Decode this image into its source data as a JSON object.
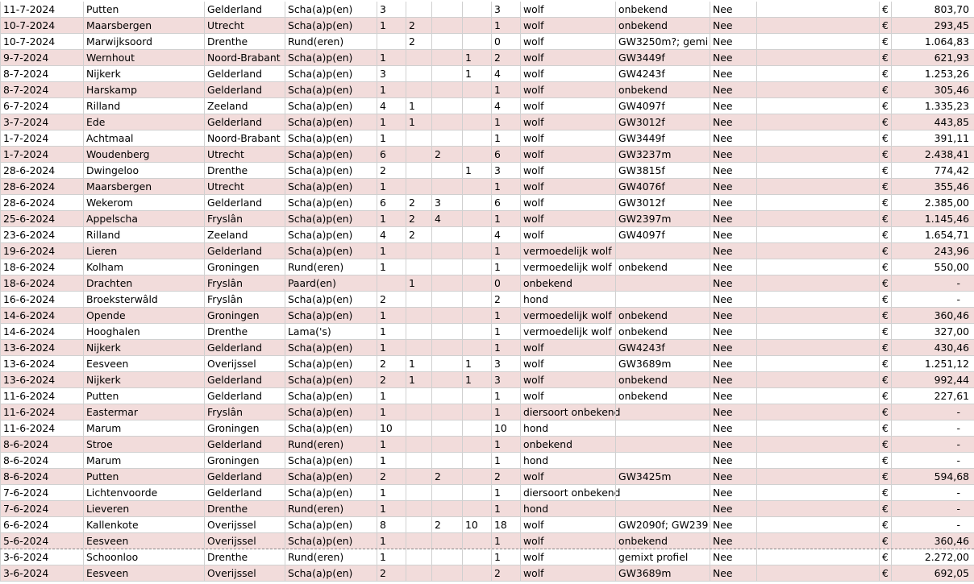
{
  "table": {
    "rows": [
      [
        "11-7-2024",
        "Putten",
        "Gelderland",
        "Scha(a)p(en)",
        "3",
        null,
        null,
        null,
        "3",
        "wolf",
        "onbekend",
        "Nee",
        null,
        "€",
        "803,70"
      ],
      [
        "10-7-2024",
        "Maarsbergen",
        "Utrecht",
        "Scha(a)p(en)",
        "1",
        "2",
        null,
        null,
        "1",
        "wolf",
        "onbekend",
        "Nee",
        null,
        "€",
        "293,45"
      ],
      [
        "10-7-2024",
        "Marwijksoord",
        "Drenthe",
        "Rund(eren)",
        null,
        "2",
        null,
        null,
        "0",
        "wolf",
        "GW3250m?; gemi",
        "Nee",
        null,
        "€",
        "1.064,83"
      ],
      [
        "9-7-2024",
        "Wernhout",
        "Noord-Brabant",
        "Scha(a)p(en)",
        "1",
        null,
        null,
        "1",
        "2",
        "wolf",
        "GW3449f",
        "Nee",
        null,
        "€",
        "621,93"
      ],
      [
        "8-7-2024",
        "Nijkerk",
        "Gelderland",
        "Scha(a)p(en)",
        "3",
        null,
        null,
        "1",
        "4",
        "wolf",
        "GW4243f",
        "Nee",
        null,
        "€",
        "1.253,26"
      ],
      [
        "8-7-2024",
        "Harskamp",
        "Gelderland",
        "Scha(a)p(en)",
        "1",
        null,
        null,
        null,
        "1",
        "wolf",
        "onbekend",
        "Nee",
        null,
        "€",
        "305,46"
      ],
      [
        "6-7-2024",
        "Rilland",
        "Zeeland",
        "Scha(a)p(en)",
        "4",
        "1",
        null,
        null,
        "4",
        "wolf",
        "GW4097f",
        "Nee",
        null,
        "€",
        "1.335,23"
      ],
      [
        "3-7-2024",
        "Ede",
        "Gelderland",
        "Scha(a)p(en)",
        "1",
        "1",
        null,
        null,
        "1",
        "wolf",
        "GW3012f",
        "Nee",
        null,
        "€",
        "443,85"
      ],
      [
        "1-7-2024",
        "Achtmaal",
        "Noord-Brabant",
        "Scha(a)p(en)",
        "1",
        null,
        null,
        null,
        "1",
        "wolf",
        "GW3449f",
        "Nee",
        null,
        "€",
        "391,11"
      ],
      [
        "1-7-2024",
        "Woudenberg",
        "Utrecht",
        "Scha(a)p(en)",
        "6",
        null,
        "2",
        null,
        "6",
        "wolf",
        "GW3237m",
        "Nee",
        null,
        "€",
        "2.438,41"
      ],
      [
        "28-6-2024",
        "Dwingeloo",
        "Drenthe",
        "Scha(a)p(en)",
        "2",
        null,
        null,
        "1",
        "3",
        "wolf",
        "GW3815f",
        "Nee",
        null,
        "€",
        "774,42"
      ],
      [
        "28-6-2024",
        "Maarsbergen",
        "Utrecht",
        "Scha(a)p(en)",
        "1",
        null,
        null,
        null,
        "1",
        "wolf",
        "GW4076f",
        "Nee",
        null,
        "€",
        "355,46"
      ],
      [
        "28-6-2024",
        "Wekerom",
        "Gelderland",
        "Scha(a)p(en)",
        "6",
        "2",
        "3",
        null,
        "6",
        "wolf",
        "GW3012f",
        "Nee",
        null,
        "€",
        "2.385,00"
      ],
      [
        "25-6-2024",
        "Appelscha",
        "Fryslân",
        "Scha(a)p(en)",
        "1",
        "2",
        "4",
        null,
        "1",
        "wolf",
        "GW2397m",
        "Nee",
        null,
        "€",
        "1.145,46"
      ],
      [
        "23-6-2024",
        "Rilland",
        "Zeeland",
        "Scha(a)p(en)",
        "4",
        "2",
        null,
        null,
        "4",
        "wolf",
        "GW4097f",
        "Nee",
        null,
        "€",
        "1.654,71"
      ],
      [
        "19-6-2024",
        "Lieren",
        "Gelderland",
        "Scha(a)p(en)",
        "1",
        null,
        null,
        null,
        "1",
        "vermoedelijk wolf",
        null,
        "Nee",
        null,
        "€",
        "243,96"
      ],
      [
        "18-6-2024",
        "Kolham",
        "Groningen",
        "Rund(eren)",
        "1",
        null,
        null,
        null,
        "1",
        "vermoedelijk wolf",
        "onbekend",
        "Nee",
        null,
        "€",
        "550,00"
      ],
      [
        "18-6-2024",
        "Drachten",
        "Fryslân",
        "Paard(en)",
        null,
        "1",
        null,
        null,
        "0",
        "onbekend",
        null,
        "Nee",
        null,
        "€",
        "-"
      ],
      [
        "16-6-2024",
        "Broeksterwâld",
        "Fryslân",
        "Scha(a)p(en)",
        "2",
        null,
        null,
        null,
        "2",
        "hond",
        null,
        "Nee",
        null,
        "€",
        "-"
      ],
      [
        "14-6-2024",
        "Opende",
        "Groningen",
        "Scha(a)p(en)",
        "1",
        null,
        null,
        null,
        "1",
        "vermoedelijk wolf",
        "onbekend",
        "Nee",
        null,
        "€",
        "360,46"
      ],
      [
        "14-6-2024",
        "Hooghalen",
        "Drenthe",
        "Lama('s)",
        "1",
        null,
        null,
        null,
        "1",
        "vermoedelijk wolf",
        "onbekend",
        "Nee",
        null,
        "€",
        "327,00"
      ],
      [
        "13-6-2024",
        "Nijkerk",
        "Gelderland",
        "Scha(a)p(en)",
        "1",
        null,
        null,
        null,
        "1",
        "wolf",
        "GW4243f",
        "Nee",
        null,
        "€",
        "430,46"
      ],
      [
        "13-6-2024",
        "Eesveen",
        "Overijssel",
        "Scha(a)p(en)",
        "2",
        "1",
        null,
        "1",
        "3",
        "wolf",
        "GW3689m",
        "Nee",
        null,
        "€",
        "1.251,12"
      ],
      [
        "13-6-2024",
        "Nijkerk",
        "Gelderland",
        "Scha(a)p(en)",
        "2",
        "1",
        null,
        "1",
        "3",
        "wolf",
        "onbekend",
        "Nee",
        null,
        "€",
        "992,44"
      ],
      [
        "11-6-2024",
        "Putten",
        "Gelderland",
        "Scha(a)p(en)",
        "1",
        null,
        null,
        null,
        "1",
        "wolf",
        "onbekend",
        "Nee",
        null,
        "€",
        "227,61"
      ],
      [
        "11-6-2024",
        "Eastermar",
        "Fryslân",
        "Scha(a)p(en)",
        "1",
        null,
        null,
        null,
        "1",
        "diersoort onbekend",
        null,
        "Nee",
        null,
        "€",
        "-"
      ],
      [
        "11-6-2024",
        "Marum",
        "Groningen",
        "Scha(a)p(en)",
        "10",
        null,
        null,
        null,
        "10",
        "hond",
        null,
        "Nee",
        null,
        "€",
        "-"
      ],
      [
        "8-6-2024",
        "Stroe",
        "Gelderland",
        "Rund(eren)",
        "1",
        null,
        null,
        null,
        "1",
        "onbekend",
        null,
        "Nee",
        null,
        "€",
        "-"
      ],
      [
        "8-6-2024",
        "Marum",
        "Groningen",
        "Scha(a)p(en)",
        "1",
        null,
        null,
        null,
        "1",
        "hond",
        null,
        "Nee",
        null,
        "€",
        "-"
      ],
      [
        "8-6-2024",
        "Putten",
        "Gelderland",
        "Scha(a)p(en)",
        "2",
        null,
        "2",
        null,
        "2",
        "wolf",
        "GW3425m",
        "Nee",
        null,
        "€",
        "594,68"
      ],
      [
        "7-6-2024",
        "Lichtenvoorde",
        "Gelderland",
        "Scha(a)p(en)",
        "1",
        null,
        null,
        null,
        "1",
        "diersoort onbekend",
        null,
        "Nee",
        null,
        "€",
        "-"
      ],
      [
        "7-6-2024",
        "Lieveren",
        "Drenthe",
        "Rund(eren)",
        "1",
        null,
        null,
        null,
        "1",
        "hond",
        null,
        "Nee",
        null,
        "€",
        "-"
      ],
      [
        "6-6-2024",
        "Kallenkote",
        "Overijssel",
        "Scha(a)p(en)",
        "8",
        null,
        "2",
        "10",
        "18",
        "wolf",
        "GW2090f; GW239",
        "Nee",
        null,
        "€",
        "-"
      ],
      [
        "5-6-2024",
        "Eesveen",
        "Overijssel",
        "Scha(a)p(en)",
        "1",
        null,
        null,
        null,
        "1",
        "wolf",
        "onbekend",
        "Nee",
        null,
        "€",
        "360,46"
      ],
      [
        "3-6-2024",
        "Schoonloo",
        "Drenthe",
        "Rund(eren)",
        "1",
        null,
        null,
        null,
        "1",
        "wolf",
        "gemixt profiel",
        "Nee",
        null,
        "€",
        "2.272,00"
      ],
      [
        "3-6-2024",
        "Eesveen",
        "Overijssel",
        "Scha(a)p(en)",
        "2",
        null,
        null,
        null,
        "2",
        "wolf",
        "GW3689m",
        "Nee",
        null,
        "€",
        "692,05"
      ]
    ]
  }
}
